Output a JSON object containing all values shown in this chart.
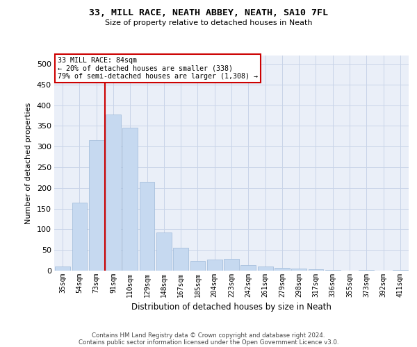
{
  "title1": "33, MILL RACE, NEATH ABBEY, NEATH, SA10 7FL",
  "title2": "Size of property relative to detached houses in Neath",
  "xlabel": "Distribution of detached houses by size in Neath",
  "ylabel": "Number of detached properties",
  "property_label": "33 MILL RACE: 84sqm",
  "annotation_line1": "← 20% of detached houses are smaller (338)",
  "annotation_line2": "79% of semi-detached houses are larger (1,308) →",
  "bar_labels": [
    "35sqm",
    "54sqm",
    "73sqm",
    "91sqm",
    "110sqm",
    "129sqm",
    "148sqm",
    "167sqm",
    "185sqm",
    "204sqm",
    "223sqm",
    "242sqm",
    "261sqm",
    "279sqm",
    "298sqm",
    "317sqm",
    "336sqm",
    "355sqm",
    "373sqm",
    "392sqm",
    "411sqm"
  ],
  "bar_values": [
    10,
    165,
    315,
    378,
    345,
    215,
    93,
    55,
    24,
    27,
    29,
    13,
    10,
    6,
    5,
    3,
    1,
    0,
    1,
    0,
    1
  ],
  "bar_color": "#c6d9f0",
  "bar_edge_color": "#9db8d8",
  "vline_color": "#cc0000",
  "ylim": [
    0,
    520
  ],
  "yticks": [
    0,
    50,
    100,
    150,
    200,
    250,
    300,
    350,
    400,
    450,
    500
  ],
  "grid_color": "#c8d4e8",
  "background_color": "#eaeff8",
  "footer1": "Contains HM Land Registry data © Crown copyright and database right 2024.",
  "footer2": "Contains public sector information licensed under the Open Government Licence v3.0."
}
